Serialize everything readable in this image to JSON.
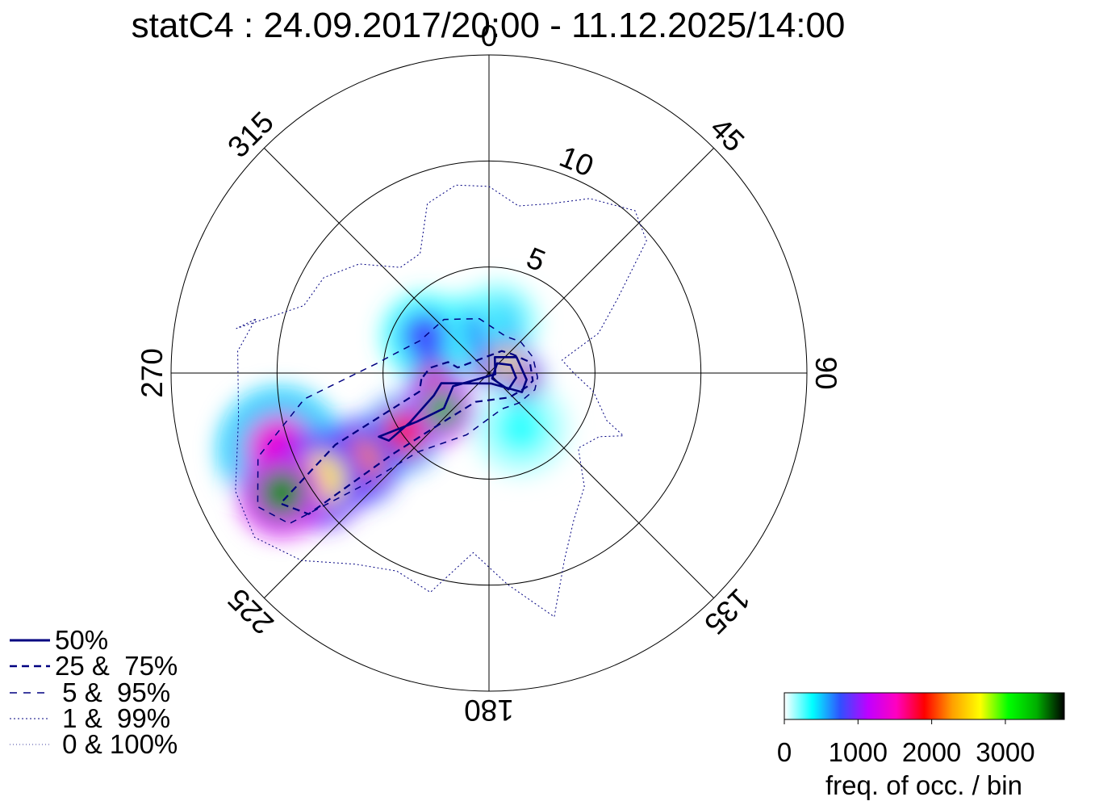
{
  "chart_data": {
    "type": "polar-heatmap",
    "title": "statC4 : 24.09.2017/20:00 - 11.12.2025/14:00",
    "angle_ticks": [
      "0",
      "45",
      "90",
      "135",
      "180",
      "225",
      "270",
      "315"
    ],
    "angle_values": [
      0,
      45,
      90,
      135,
      180,
      225,
      270,
      315
    ],
    "radial_ticks": [
      "5",
      "10"
    ],
    "radial_values": [
      5,
      10
    ],
    "radial_max": 15,
    "legend": [
      {
        "label": "50%",
        "style": "solid"
      },
      {
        "label": "25 &  75%",
        "style": "dashed"
      },
      {
        "label": " 5 &  95%",
        "style": "dashed-light"
      },
      {
        "label": " 1 &  99%",
        "style": "dotted"
      },
      {
        "label": " 0 & 100%",
        "style": "dotted-fine"
      }
    ],
    "colorbar": {
      "tick_labels": [
        "0",
        "1000",
        "2000",
        "3000"
      ],
      "tick_values": [
        0,
        1000,
        2000,
        3000
      ],
      "max": 3800,
      "label": "freq. of occ. / bin",
      "colors": [
        "#ffffff",
        "#00ffff",
        "#3050ff",
        "#c000ff",
        "#ff00c0",
        "#ff0000",
        "#ffa000",
        "#ffff00",
        "#00ff00",
        "#00b000",
        "#000000"
      ]
    },
    "density": [
      {
        "angle": 240,
        "r": 11.3,
        "value": 3500,
        "spread": 1.6
      },
      {
        "angle": 238,
        "r": 9.5,
        "value": 2600,
        "spread": 1.8
      },
      {
        "angle": 236,
        "r": 7.5,
        "value": 2200,
        "spread": 1.6
      },
      {
        "angle": 235,
        "r": 5.0,
        "value": 1800,
        "spread": 1.4
      },
      {
        "angle": 232,
        "r": 2.8,
        "value": 3400,
        "spread": 1.2
      },
      {
        "angle": 260,
        "r": 2.6,
        "value": 2200,
        "spread": 1.0
      },
      {
        "angle": 60,
        "r": 1.0,
        "value": 2600,
        "spread": 0.9
      },
      {
        "angle": 100,
        "r": 1.6,
        "value": 1800,
        "spread": 0.8
      },
      {
        "angle": 0,
        "r": 0.3,
        "value": 2000,
        "spread": 0.7
      },
      {
        "angle": 250,
        "r": 10.5,
        "value": 1400,
        "spread": 2.3
      },
      {
        "angle": 300,
        "r": 3.5,
        "value": 800,
        "spread": 1.6
      },
      {
        "angle": 330,
        "r": 2.2,
        "value": 700,
        "spread": 1.4
      },
      {
        "angle": 10,
        "r": 2.4,
        "value": 500,
        "spread": 1.5
      },
      {
        "angle": 150,
        "r": 3.0,
        "value": 300,
        "spread": 1.8
      }
    ],
    "contours": [
      {
        "level": "50%",
        "style": "solid",
        "points": [
          [
            258,
            2.3
          ],
          [
            248,
            2.8
          ],
          [
            238,
            4.4
          ],
          [
            236,
            5.7
          ],
          [
            240,
            6.0
          ],
          [
            236,
            4.1
          ],
          [
            232,
            2.7
          ],
          [
            250,
            1.8
          ],
          [
            100,
            0.3
          ],
          [
            20,
            0.8
          ],
          [
            60,
            1.5
          ],
          [
            100,
            1.8
          ],
          [
            120,
            1.8
          ],
          [
            170,
            0.5
          ],
          [
            258,
            2.3
          ]
        ]
      },
      {
        "level": "50%",
        "style": "solid",
        "points": [
          [
            40,
            0.6
          ],
          [
            70,
            1.1
          ],
          [
            100,
            1.3
          ],
          [
            130,
            1.2
          ],
          [
            150,
            0.3
          ],
          [
            40,
            0.6
          ]
        ]
      },
      {
        "level": "25 & 75%",
        "style": "dashed",
        "points": [
          [
            265,
            3.2
          ],
          [
            255,
            3.4
          ],
          [
            245,
            8.0
          ],
          [
            238,
            11.6
          ],
          [
            232,
            10.8
          ],
          [
            230,
            6.0
          ],
          [
            225,
            3.6
          ],
          [
            205,
            1.5
          ],
          [
            140,
            1.5
          ],
          [
            110,
            1.9
          ],
          [
            100,
            2.1
          ],
          [
            75,
            2.0
          ],
          [
            50,
            1.4
          ],
          [
            30,
            1.2
          ],
          [
            280,
            1.5
          ],
          [
            285,
            2.0
          ],
          [
            275,
            2.8
          ],
          [
            265,
            3.2
          ]
        ]
      },
      {
        "level": "5 & 95%",
        "style": "dashed-light",
        "points": [
          [
            275,
            5.3
          ],
          [
            262,
            8.8
          ],
          [
            250,
            11.6
          ],
          [
            240,
            12.6
          ],
          [
            233,
            11.8
          ],
          [
            228,
            7.8
          ],
          [
            222,
            5.0
          ],
          [
            200,
            3.1
          ],
          [
            160,
            1.8
          ],
          [
            135,
            2.0
          ],
          [
            110,
            2.3
          ],
          [
            95,
            2.3
          ],
          [
            70,
            2.2
          ],
          [
            45,
            2.1
          ],
          [
            25,
            1.9
          ],
          [
            350,
            2.6
          ],
          [
            320,
            3.3
          ],
          [
            295,
            3.6
          ],
          [
            280,
            4.7
          ],
          [
            275,
            5.3
          ]
        ]
      },
      {
        "level": "1 & 99%",
        "style": "dotted",
        "points": [
          [
            283,
            11.3
          ],
          [
            275,
            11.9
          ],
          [
            260,
            12.0
          ],
          [
            245,
            13.2
          ],
          [
            235,
            13.5
          ],
          [
            225,
            12.5
          ],
          [
            215,
            11.0
          ],
          [
            205,
            10.3
          ],
          [
            195,
            10.7
          ],
          [
            185,
            8.5
          ],
          [
            175,
            10.0
          ],
          [
            165,
            11.9
          ],
          [
            158,
            9.5
          ],
          [
            150,
            8.0
          ],
          [
            140,
            7.0
          ],
          [
            130,
            5.5
          ],
          [
            120,
            6.0
          ],
          [
            115,
            7.0
          ],
          [
            112,
            6.0
          ],
          [
            100,
            5.0
          ],
          [
            90,
            4.0
          ],
          [
            80,
            3.5
          ],
          [
            70,
            5.5
          ],
          [
            60,
            7.0
          ],
          [
            50,
            9.7
          ],
          [
            42,
            10.3
          ],
          [
            30,
            9.5
          ],
          [
            20,
            8.5
          ],
          [
            10,
            8.0
          ],
          [
            0,
            8.8
          ],
          [
            -10,
            9.0
          ],
          [
            -20,
            8.5
          ],
          [
            -30,
            6.5
          ],
          [
            -40,
            6.5
          ],
          [
            -50,
            8.0
          ],
          [
            -60,
            9.0
          ],
          [
            -70,
            9.3
          ],
          [
            -80,
            12.1
          ],
          [
            283,
            11.3
          ]
        ]
      }
    ]
  }
}
